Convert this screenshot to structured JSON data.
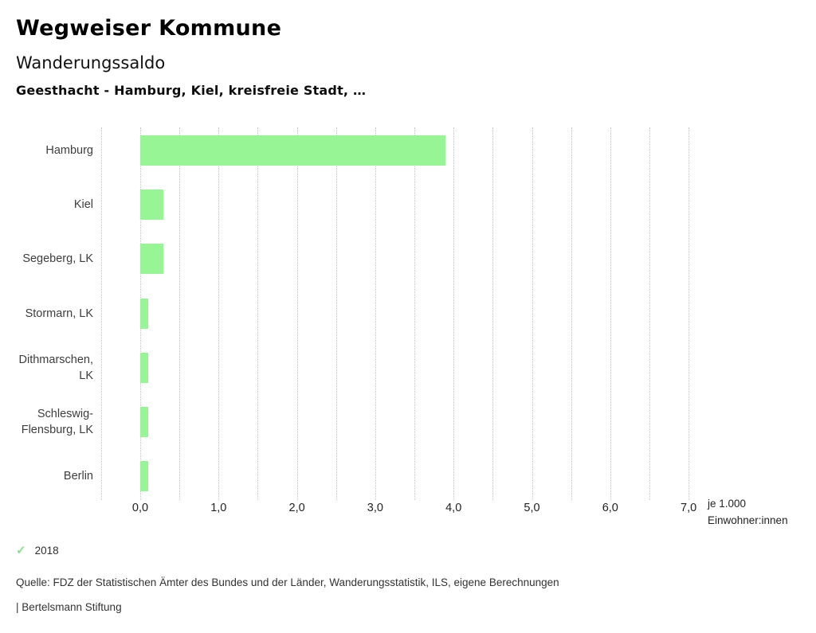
{
  "header": {
    "app_title": "Wegweiser Kommune",
    "chart_title": "Wanderungssaldo",
    "chart_subtitle": "Geesthacht - Hamburg, Kiel, kreisfreie Stadt, …"
  },
  "chart_data": {
    "type": "bar",
    "orientation": "horizontal",
    "title": "Wanderungssaldo",
    "subtitle": "Geesthacht - Hamburg, Kiel, kreisfreie Stadt, …",
    "categories": [
      "Hamburg",
      "Kiel",
      "Segeberg, LK",
      "Stormarn, LK",
      "Dithmarschen, LK",
      "Schleswig-Flensburg, LK",
      "Berlin"
    ],
    "series": [
      {
        "name": "2018",
        "values": [
          3.9,
          0.3,
          0.3,
          0.1,
          0.1,
          0.1,
          0.1
        ]
      }
    ],
    "xlabel": "je 1.000 Einwohner:innen",
    "ylabel": "",
    "xlim": [
      -0.5,
      7.0
    ],
    "x_major_ticks": [
      "0,0",
      "1,0",
      "2,0",
      "3,0",
      "4,0",
      "5,0",
      "6,0",
      "7,0"
    ],
    "x_major_values": [
      0,
      1,
      2,
      3,
      4,
      5,
      6,
      7
    ],
    "x_minor_step": 0.5,
    "grid": "vertical-dotted",
    "legend_position": "bottom-left",
    "bar_color": "#98f596",
    "gridline_color": "#c3c3c3",
    "unit_label_line1": "je 1.000",
    "unit_label_line2": "Einwohner:innen"
  },
  "legend": {
    "check_icon": "✓",
    "check_color": "#8bdf8b",
    "year_label": "2018"
  },
  "footer": {
    "source": "Quelle: FDZ der Statistischen Ämter des Bundes und der Länder, Wanderungsstatistik, ILS, eigene Berechnungen",
    "attribution": "| Bertelsmann Stiftung"
  }
}
